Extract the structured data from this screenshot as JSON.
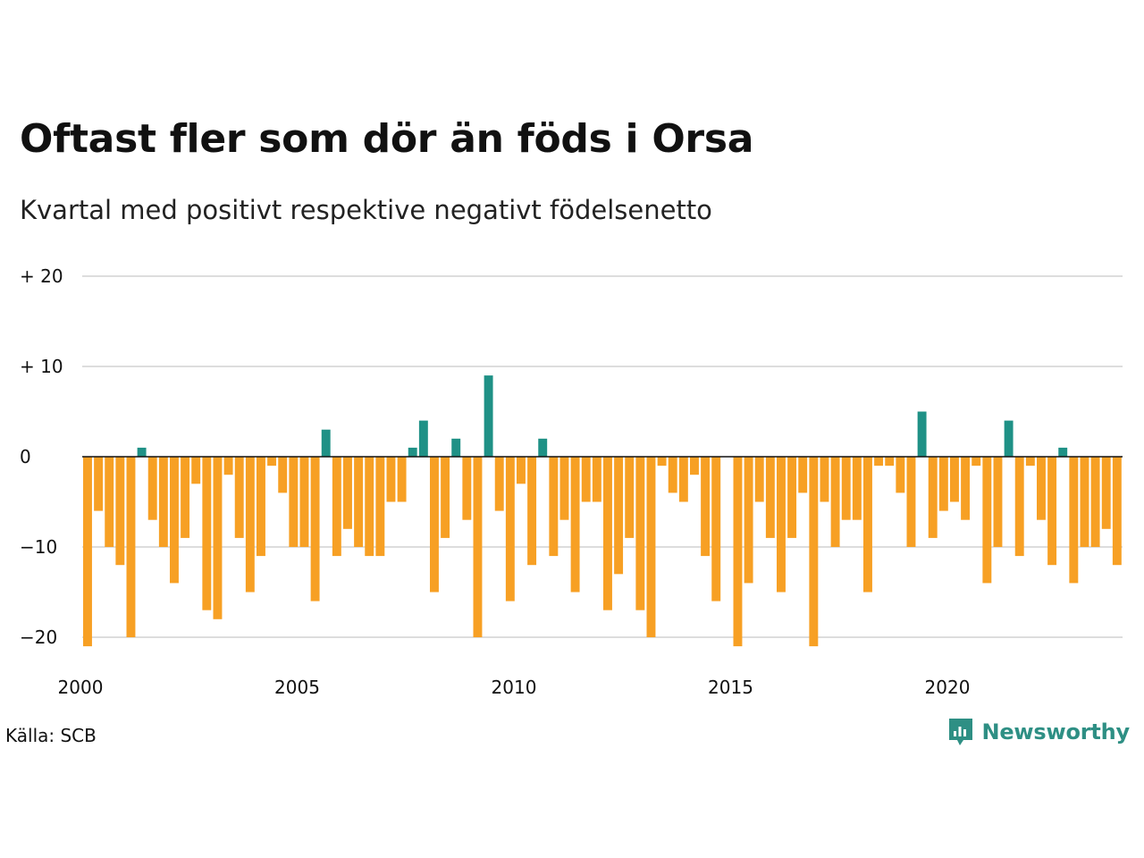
{
  "title": "Oftast fler som dör än föds i Orsa",
  "subtitle": "Kvartal med positivt respektive negativt födelsenetto",
  "source": "Källa: SCB",
  "brand": {
    "name": "Newsworthy",
    "icon": "newsworthy-logo-icon"
  },
  "colors": {
    "positive": "#1f9186",
    "negative": "#f7a024",
    "grid": "#dddddd",
    "zero_line": "#111111"
  },
  "chart_data": {
    "type": "bar",
    "title": "Oftast fler som dör än föds i Orsa",
    "subtitle": "Kvartal med positivt respektive negativt födelsenetto",
    "x_start": 2000,
    "periods_per_year": 4,
    "x_ticks": [
      "2000",
      "2005",
      "2010",
      "2015",
      "2020"
    ],
    "y_ticks": [
      {
        "value": 20,
        "label": "+ 20"
      },
      {
        "value": 10,
        "label": "+ 10"
      },
      {
        "value": 0,
        "label": "0"
      },
      {
        "value": -10,
        "label": "−10"
      },
      {
        "value": -20,
        "label": "−20"
      }
    ],
    "ylim": [
      -22,
      22
    ],
    "grid": true,
    "values": [
      -21,
      -6,
      -10,
      -12,
      -20,
      1,
      -7,
      -10,
      -14,
      -9,
      -3,
      -17,
      -18,
      -2,
      -9,
      -15,
      -11,
      -1,
      -4,
      -10,
      -10,
      -16,
      3,
      -11,
      -8,
      -10,
      -11,
      -11,
      -5,
      -5,
      1,
      4,
      -15,
      -9,
      2,
      -7,
      -20,
      9,
      -6,
      -16,
      -3,
      -12,
      2,
      -11,
      -7,
      -15,
      -5,
      -5,
      -17,
      -13,
      -9,
      -17,
      -20,
      -1,
      -4,
      -5,
      -2,
      -11,
      -16,
      0,
      -21,
      -14,
      -5,
      -9,
      -15,
      -9,
      -4,
      -21,
      -5,
      -10,
      -7,
      -7,
      -15,
      -1,
      -1,
      -4,
      -10,
      5,
      -9,
      -6,
      -5,
      -7,
      -1,
      -14,
      -10,
      4,
      -11,
      -1,
      -7,
      -12,
      1,
      -14,
      -10,
      -10,
      -8,
      -12
    ]
  }
}
